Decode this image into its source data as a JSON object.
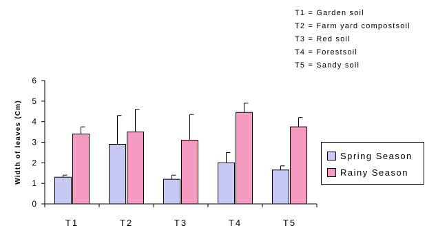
{
  "chart_data": {
    "type": "bar",
    "categories": [
      "T1",
      "T2",
      "T3",
      "T4",
      "T5"
    ],
    "series": [
      {
        "name": "Spring Season",
        "values": [
          1.3,
          2.9,
          1.2,
          2.0,
          1.65
        ],
        "errors": [
          0.1,
          1.4,
          0.2,
          0.5,
          0.2
        ],
        "color": "#c8c8f4"
      },
      {
        "name": "Rainy Season",
        "values": [
          3.4,
          3.5,
          3.1,
          4.45,
          3.75
        ],
        "errors": [
          0.35,
          1.1,
          1.25,
          0.45,
          0.45
        ],
        "color": "#f59ac1"
      }
    ],
    "title": "",
    "xlabel": "",
    "ylabel": "Width of leaves (Cm)",
    "ylim": [
      0,
      6
    ],
    "yticks": [
      "0",
      "1",
      "2",
      "3",
      "4",
      "5",
      "6"
    ],
    "grid": false,
    "legend_placement": "right"
  },
  "treatment_key": [
    "T1 = Garden soil",
    "T2 = Farm yard compostsoil",
    "T3 = Red soil",
    "T4 = Forestsoil",
    "T5 = Sandy soil"
  ]
}
